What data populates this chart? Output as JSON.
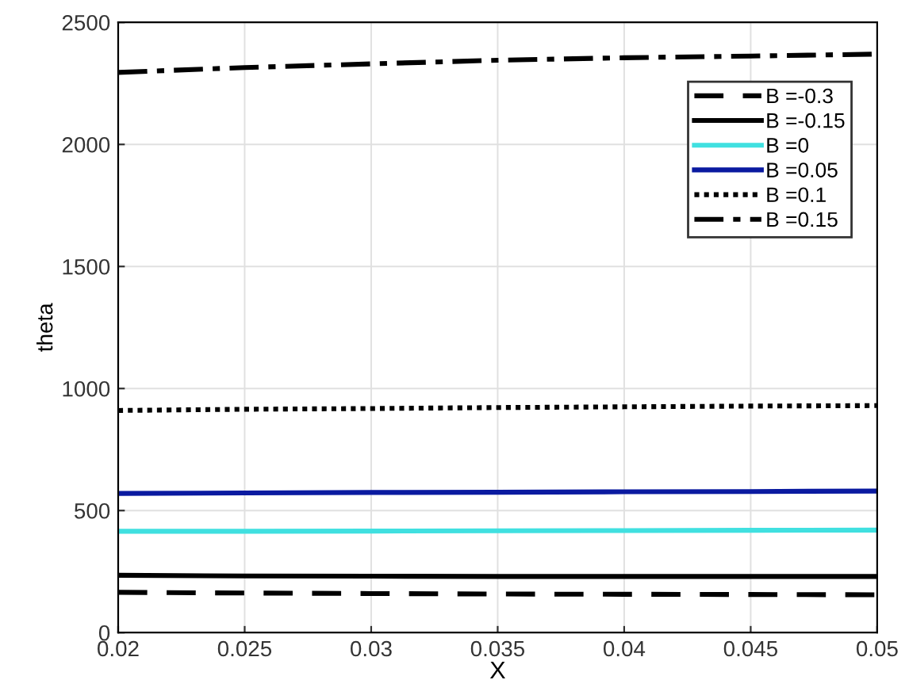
{
  "chart_data": {
    "type": "line",
    "xlabel": "X",
    "ylabel": "theta",
    "x": [
      0.02,
      0.025,
      0.03,
      0.035,
      0.04,
      0.045,
      0.05
    ],
    "series": [
      {
        "name": "B =-0.3",
        "color": "#000000",
        "line_style": "dashed",
        "values": [
          165,
          162,
          160,
          158,
          157,
          156,
          155
        ]
      },
      {
        "name": "B =-0.15",
        "color": "#000000",
        "line_style": "solid",
        "values": [
          235,
          232,
          231,
          230,
          230,
          230,
          230
        ]
      },
      {
        "name": "B =0",
        "color": "#40e0e0",
        "line_style": "solid",
        "values": [
          415,
          415,
          416,
          417,
          418,
          419,
          420
        ]
      },
      {
        "name": "B =0.05",
        "color": "#0a1aa0",
        "line_style": "solid",
        "values": [
          570,
          572,
          574,
          575,
          577,
          578,
          580
        ]
      },
      {
        "name": "B =0.1",
        "color": "#000000",
        "line_style": "dotted",
        "values": [
          910,
          915,
          918,
          922,
          925,
          928,
          930
        ]
      },
      {
        "name": "B =0.15",
        "color": "#000000",
        "line_style": "dashdot",
        "values": [
          2295,
          2315,
          2330,
          2345,
          2355,
          2362,
          2370
        ]
      }
    ],
    "xlim": [
      0.02,
      0.05
    ],
    "xticks": [
      0.02,
      0.025,
      0.03,
      0.035,
      0.04,
      0.045,
      0.05
    ],
    "ylim": [
      0,
      2500
    ],
    "yticks": [
      0,
      500,
      1000,
      1500,
      2000,
      2500
    ],
    "grid": true,
    "legend": "top right"
  }
}
